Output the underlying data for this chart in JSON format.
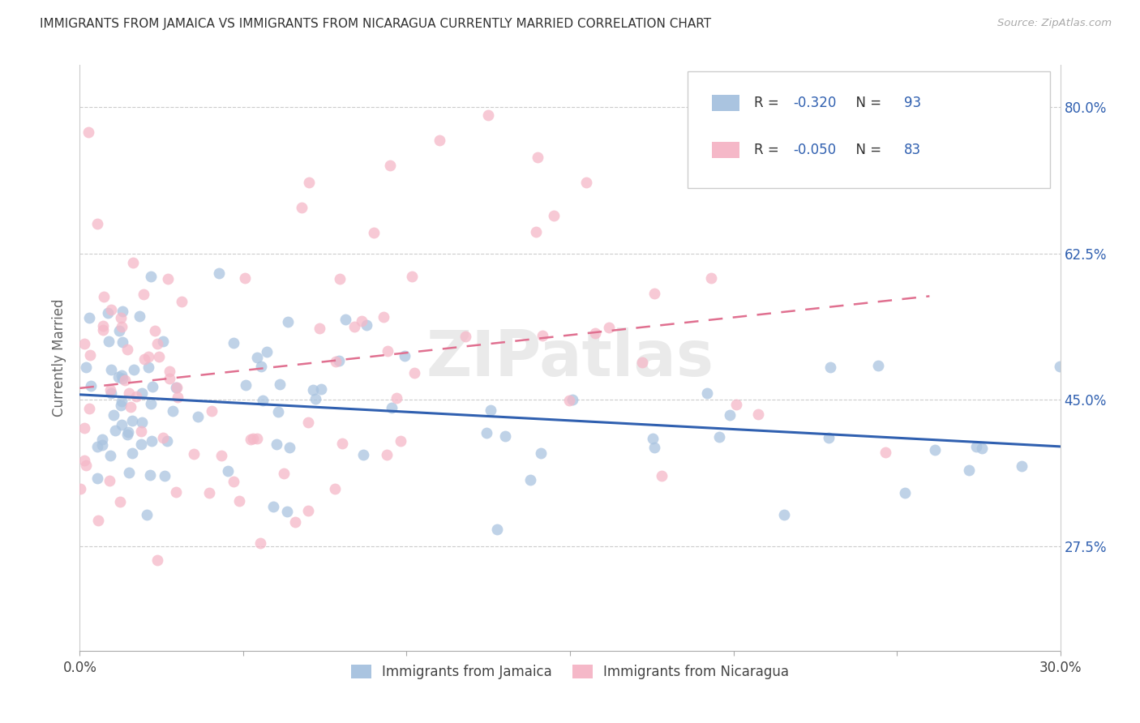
{
  "title": "IMMIGRANTS FROM JAMAICA VS IMMIGRANTS FROM NICARAGUA CURRENTLY MARRIED CORRELATION CHART",
  "source": "Source: ZipAtlas.com",
  "ylabel_label": "Currently Married",
  "x_min": 0.0,
  "x_max": 0.3,
  "y_min": 0.15,
  "y_max": 0.85,
  "x_ticks": [
    0.0,
    0.05,
    0.1,
    0.15,
    0.2,
    0.25,
    0.3
  ],
  "x_tick_labels": [
    "0.0%",
    "",
    "",
    "",
    "",
    "",
    "30.0%"
  ],
  "y_ticks": [
    0.275,
    0.45,
    0.625,
    0.8
  ],
  "y_tick_labels": [
    "27.5%",
    "45.0%",
    "62.5%",
    "80.0%"
  ],
  "jamaica_color": "#aac4e0",
  "nicaragua_color": "#f5b8c8",
  "jamaica_line_color": "#3060b0",
  "nicaragua_line_color": "#e07090",
  "jamaica_R": -0.32,
  "jamaica_N": 93,
  "nicaragua_R": -0.05,
  "nicaragua_N": 83,
  "legend_text_color": "#3060b0",
  "watermark": "ZIPatlas",
  "background_color": "#ffffff",
  "grid_color": "#cccccc",
  "title_color": "#333333",
  "axis_label_color": "#666666",
  "right_tick_color": "#3060b0"
}
